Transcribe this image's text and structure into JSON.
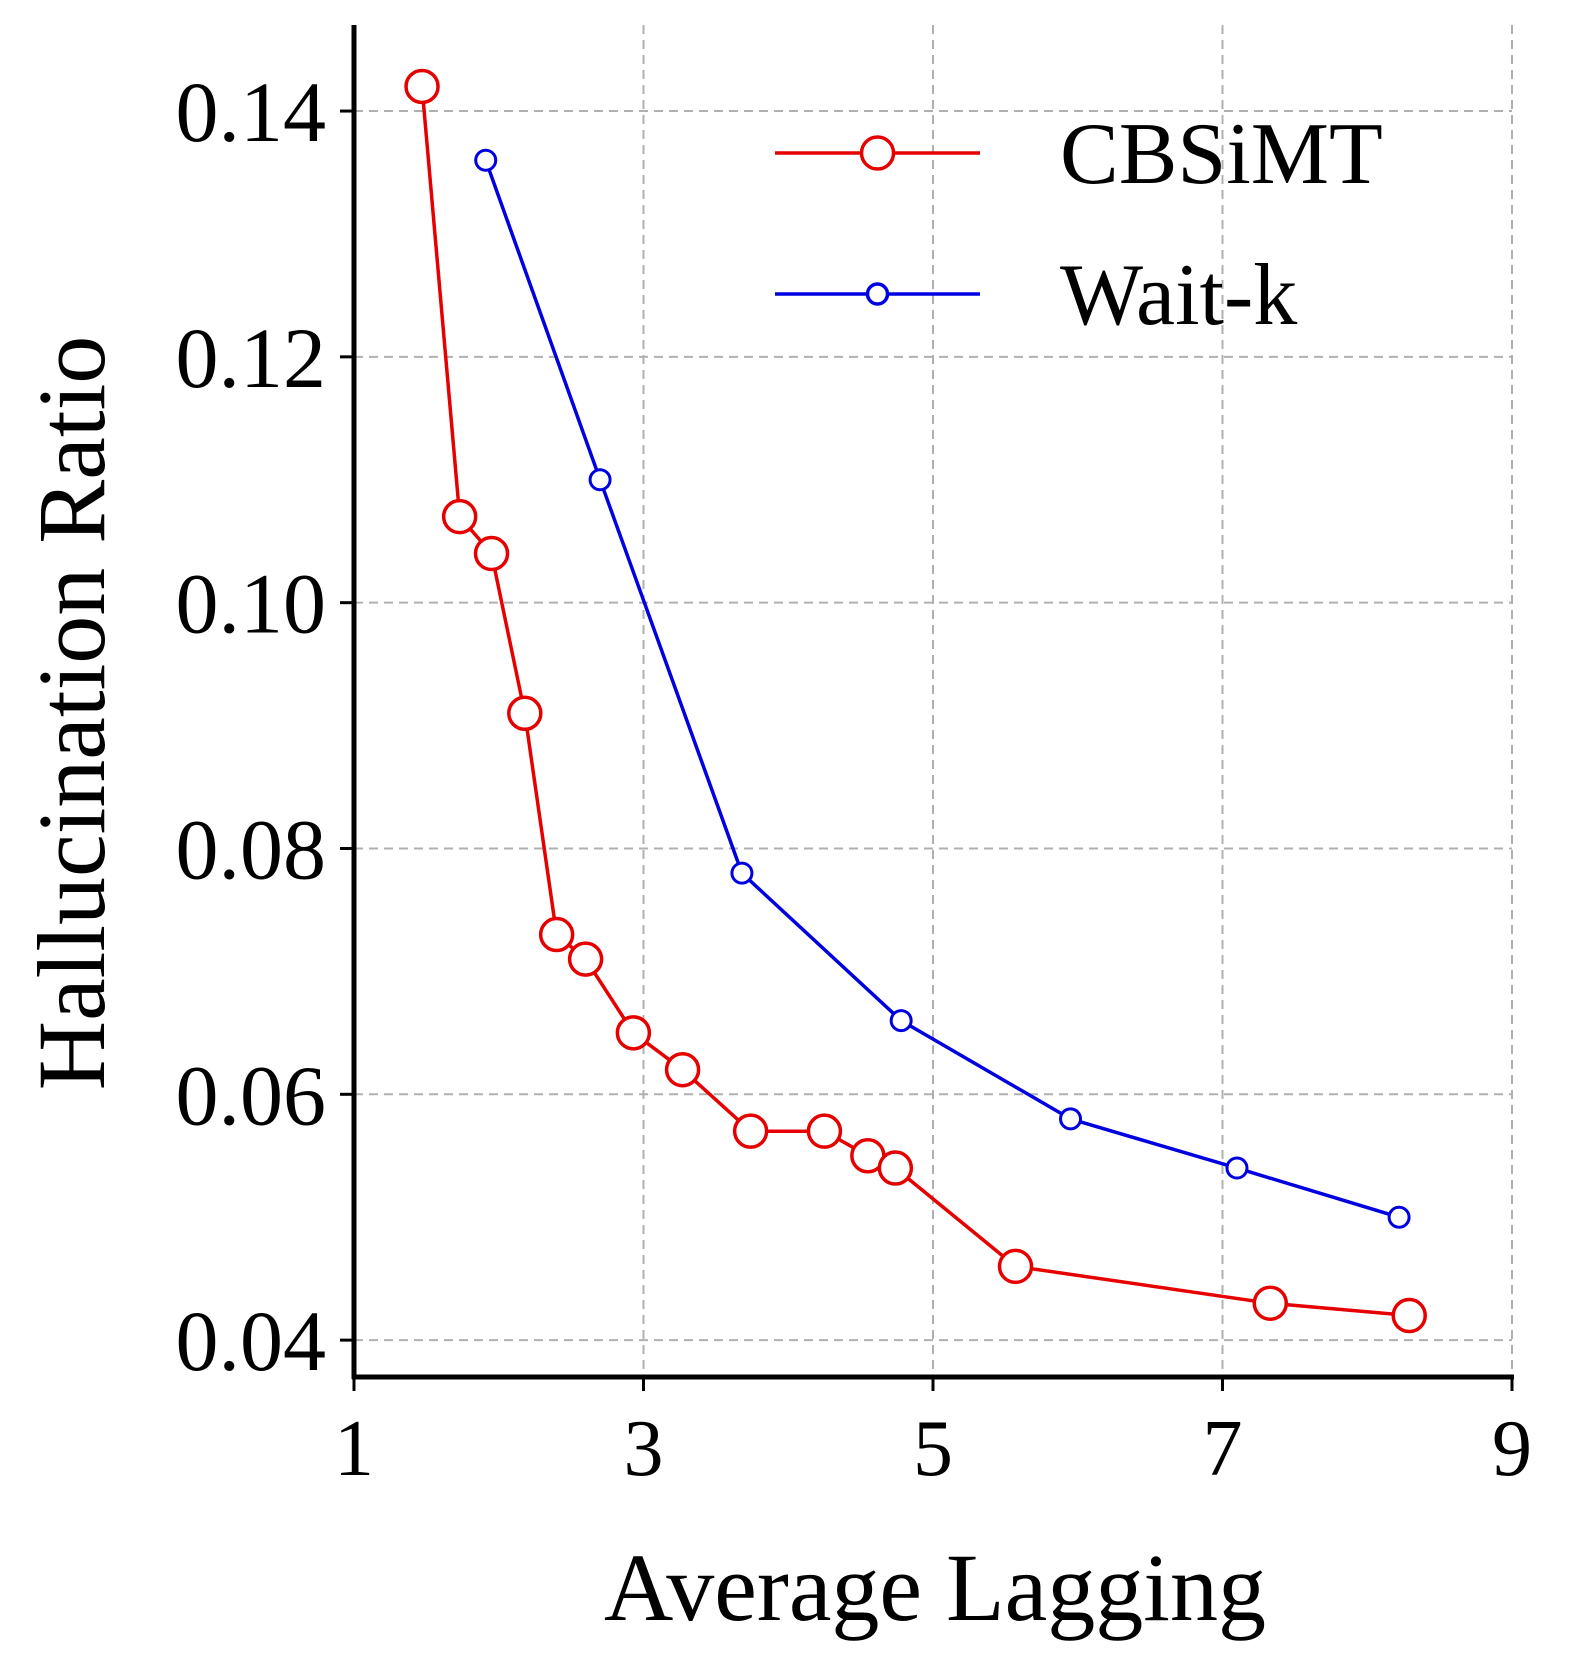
{
  "chart_data": {
    "type": "line",
    "title": "",
    "xlabel": "Average Lagging",
    "ylabel": "Hallucination Ratio",
    "xlim": [
      1,
      9
    ],
    "ylim": [
      0.037,
      0.147
    ],
    "xticks": [
      1,
      3,
      5,
      7,
      9
    ],
    "xtick_labels": [
      "1",
      "3",
      "5",
      "7",
      "9"
    ],
    "yticks": [
      0.04,
      0.06,
      0.08,
      0.1,
      0.12,
      0.14
    ],
    "ytick_labels": [
      "0.04",
      "0.06",
      "0.08",
      "0.10",
      "0.12",
      "0.14"
    ],
    "grid": true,
    "legend_position": "top-right",
    "series": [
      {
        "name": "CBSiMT",
        "color": "#e60000",
        "marker": "open-circle-large",
        "x": [
          1.47,
          1.73,
          1.95,
          2.18,
          2.4,
          2.6,
          2.93,
          3.27,
          3.74,
          4.25,
          4.55,
          4.74,
          5.57,
          7.33,
          8.29
        ],
        "y": [
          0.142,
          0.107,
          0.104,
          0.091,
          0.073,
          0.071,
          0.065,
          0.062,
          0.057,
          0.057,
          0.055,
          0.054,
          0.046,
          0.043,
          0.042
        ]
      },
      {
        "name": "Wait-k",
        "color": "#0000e0",
        "marker": "open-circle-small",
        "x": [
          1.91,
          2.7,
          3.68,
          4.78,
          5.95,
          7.1,
          8.22
        ],
        "y": [
          0.136,
          0.11,
          0.078,
          0.066,
          0.058,
          0.054,
          0.05
        ]
      }
    ]
  }
}
